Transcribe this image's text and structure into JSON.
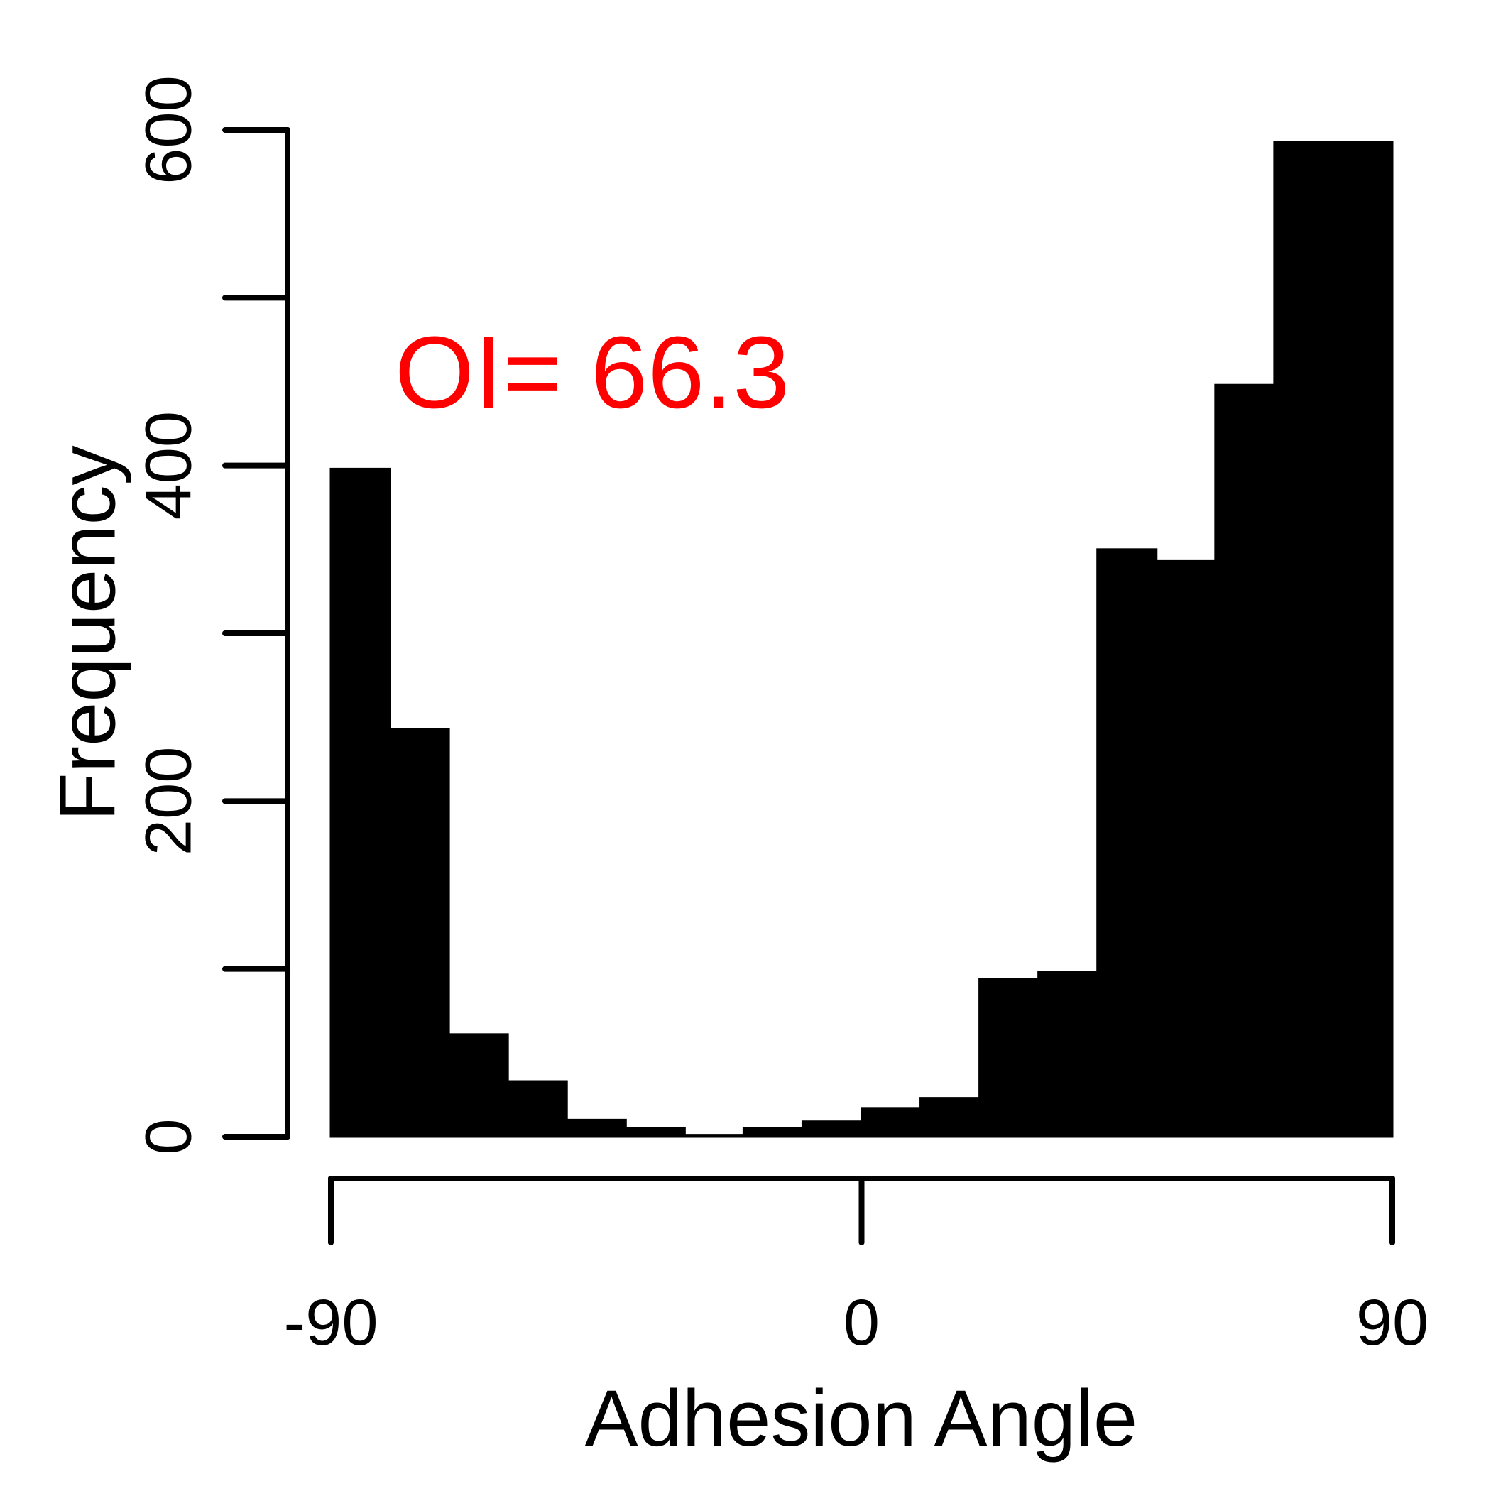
{
  "chart_data": {
    "type": "bar",
    "subtype": "histogram",
    "title": "",
    "xlabel": "Adhesion Angle",
    "ylabel": "Frequency",
    "xlim": [
      -90,
      90
    ],
    "ylim": [
      0,
      600
    ],
    "x_ticks": [
      "-90",
      "0",
      "90"
    ],
    "y_ticks": [
      "0",
      "200",
      "400",
      "600"
    ],
    "y_minor_ticks": [
      100,
      300,
      500
    ],
    "bin_width": 10,
    "bin_edges": [
      -90,
      -80,
      -70,
      -60,
      -50,
      -40,
      -30,
      -20,
      -10,
      0,
      10,
      20,
      30,
      40,
      50,
      60,
      70,
      80,
      90
    ],
    "values": [
      398,
      243,
      61,
      33,
      10,
      5,
      1,
      5,
      9,
      17,
      23,
      94,
      98,
      350,
      343,
      448,
      593,
      593
    ],
    "bar_color": "#000000",
    "annotation": {
      "text": "OI= 66.3",
      "color": "#ff0000"
    },
    "grid": false,
    "legend": "none"
  }
}
